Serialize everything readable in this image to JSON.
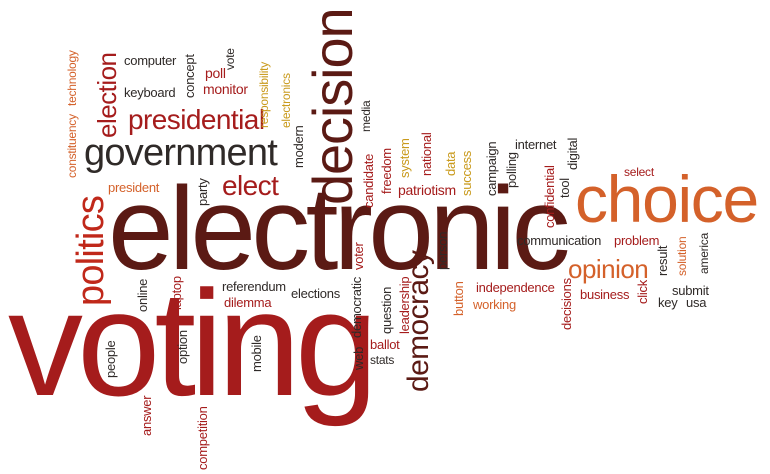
{
  "colors": {
    "dark": "#5b1a14",
    "red": "#a51c1c",
    "bright_red": "#c0281a",
    "orange": "#d4612a",
    "gold": "#c99a1c",
    "grey": "#2f2a28"
  },
  "words": {
    "voting": "voting",
    "electronic": "electronic",
    "choice": "choice",
    "decision": "decision",
    "government": "government",
    "politics": "politics",
    "democracy": "democracy",
    "presidential": "presidential",
    "election": "election",
    "elect": "elect",
    "opinion": "opinion",
    "computer": "computer",
    "keyboard": "keyboard",
    "concept": "concept",
    "poll": "poll",
    "monitor": "monitor",
    "vote": "vote",
    "responsibility": "responsibility",
    "electronics": "electronics",
    "technology": "technology",
    "constituency": "constituency",
    "media": "media",
    "modern": "modern",
    "party": "party",
    "president": "president",
    "candidate": "candidate",
    "freedom": "freedom",
    "system": "system",
    "national": "national",
    "data": "data",
    "success": "success",
    "patriotism": "patriotism",
    "campaign": "campaign",
    "polling": "polling",
    "internet": "internet",
    "digital": "digital",
    "confidential": "confidential",
    "tool": "tool",
    "select": "select",
    "communication": "communication",
    "problem": "problem",
    "solution": "solution",
    "america": "america",
    "result": "result",
    "submit": "submit",
    "key": "key",
    "usa": "usa",
    "click": "click",
    "business": "business",
    "decisions": "decisions",
    "independence": "independence",
    "working": "working",
    "button": "button",
    "leadership": "leadership",
    "question": "question",
    "ballot": "ballot",
    "stats": "stats",
    "web": "web",
    "democratic": "democratic",
    "voter": "voter",
    "person": "person",
    "elections": "elections",
    "referendum": "referendum",
    "dilemma": "dilemma",
    "mobile": "mobile",
    "laptop": "laptop",
    "online": "online",
    "option": "option",
    "people": "people",
    "answer": "answer",
    "competition": "competition"
  }
}
